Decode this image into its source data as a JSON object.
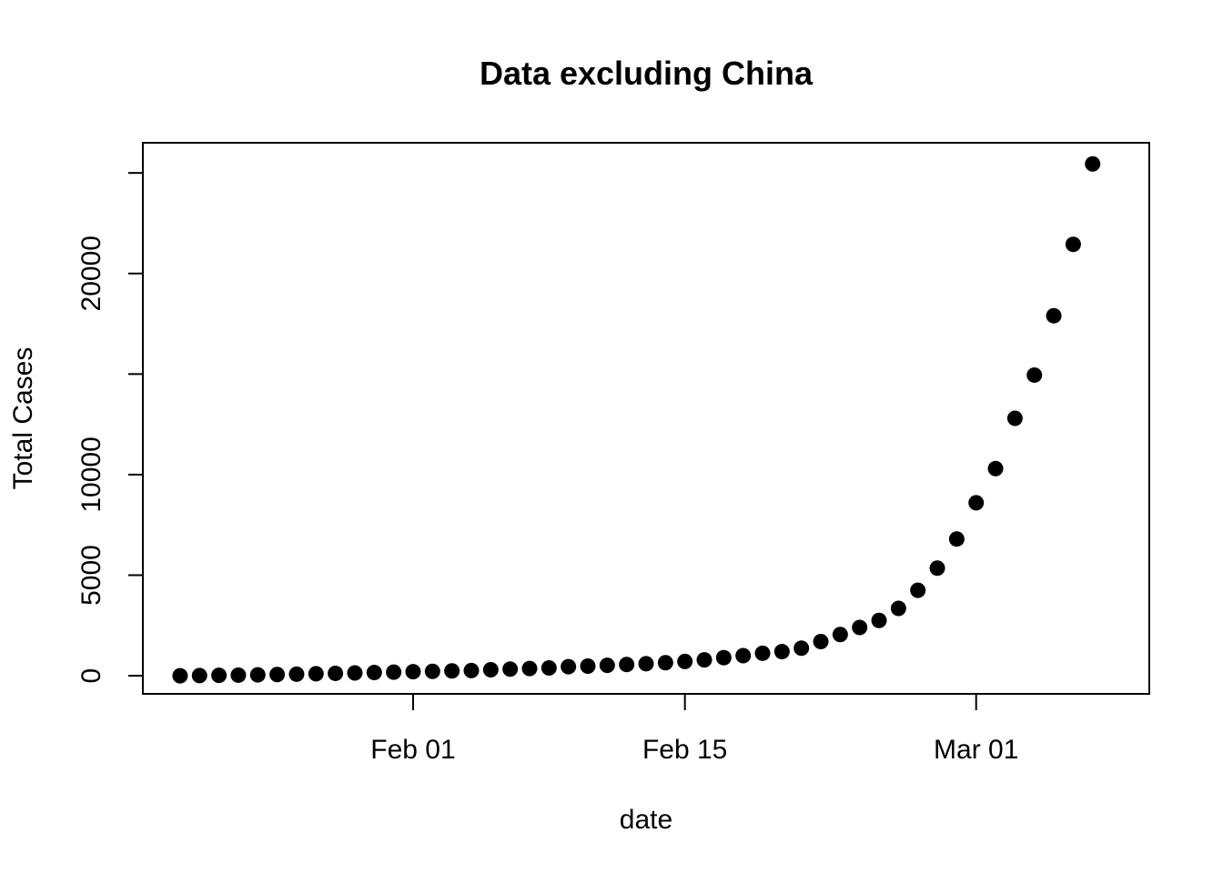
{
  "chart_data": {
    "type": "scatter",
    "title": "Data excluding China",
    "xlabel": "date",
    "ylabel": "Total Cases",
    "x_ticks": [
      {
        "label": "Feb 01",
        "value": "2020-02-01"
      },
      {
        "label": "Feb 15",
        "value": "2020-02-15"
      },
      {
        "label": "Mar 01",
        "value": "2020-03-01"
      }
    ],
    "y_ticks": [
      {
        "label": "0",
        "value": 0
      },
      {
        "label": "5000",
        "value": 5000
      },
      {
        "label": "10000",
        "value": 10000
      },
      {
        "label": "",
        "value": 15000
      },
      {
        "label": "20000",
        "value": 20000
      },
      {
        "label": "",
        "value": 25000
      }
    ],
    "xlim": [
      "2020-01-20",
      "2020-03-08"
    ],
    "ylim": [
      -900,
      26500
    ],
    "grid": false,
    "series": [
      {
        "x": [
          "2020-01-20",
          "2020-01-21",
          "2020-01-22",
          "2020-01-23",
          "2020-01-24",
          "2020-01-25",
          "2020-01-26",
          "2020-01-27",
          "2020-01-28",
          "2020-01-29",
          "2020-01-30",
          "2020-01-31",
          "2020-02-01",
          "2020-02-02",
          "2020-02-03",
          "2020-02-04",
          "2020-02-05",
          "2020-02-06",
          "2020-02-07",
          "2020-02-08",
          "2020-02-09",
          "2020-02-10",
          "2020-02-11",
          "2020-02-12",
          "2020-02-13",
          "2020-02-14",
          "2020-02-15",
          "2020-02-16",
          "2020-02-17",
          "2020-02-18",
          "2020-02-19",
          "2020-02-20",
          "2020-02-21",
          "2020-02-22",
          "2020-02-23",
          "2020-02-24",
          "2020-02-25",
          "2020-02-26",
          "2020-02-27",
          "2020-02-28",
          "2020-02-29",
          "2020-03-01",
          "2020-03-02",
          "2020-03-03",
          "2020-03-04",
          "2020-03-05",
          "2020-03-06",
          "2020-03-07"
        ],
        "y": [
          0,
          10,
          20,
          30,
          45,
          60,
          80,
          100,
          120,
          140,
          160,
          180,
          200,
          220,
          240,
          260,
          300,
          330,
          360,
          390,
          450,
          480,
          520,
          560,
          600,
          650,
          710,
          790,
          900,
          1000,
          1120,
          1200,
          1370,
          1700,
          2050,
          2400,
          2750,
          3350,
          4250,
          5350,
          6800,
          8600,
          10300,
          12800,
          14950,
          17900,
          21450,
          25450
        ]
      }
    ]
  }
}
